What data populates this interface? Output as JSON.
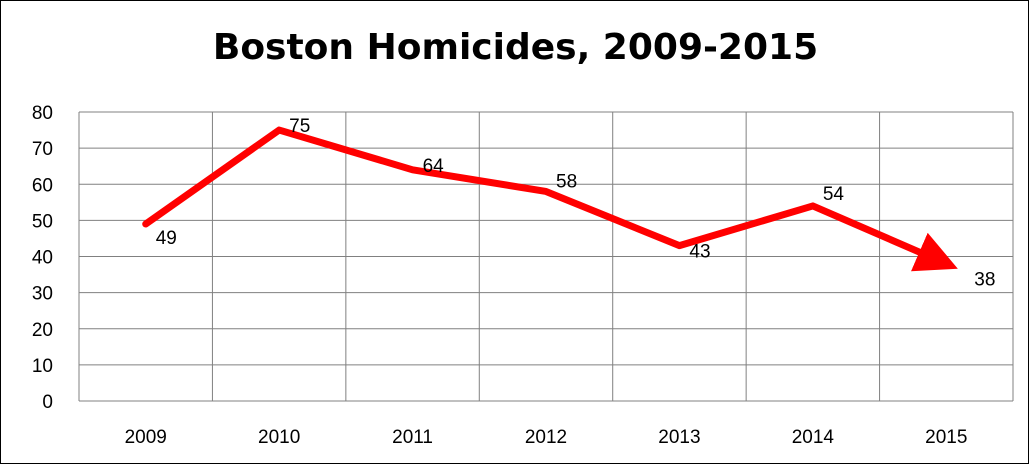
{
  "chart_data": {
    "type": "line",
    "title": "Boston Homicides, 2009-2015",
    "categories": [
      "2009",
      "2010",
      "2011",
      "2012",
      "2013",
      "2014",
      "2015"
    ],
    "series": [
      {
        "values": [
          49,
          75,
          64,
          58,
          43,
          54,
          38
        ]
      }
    ],
    "ylim": [
      0,
      80
    ],
    "yticks": [
      0,
      10,
      20,
      30,
      40,
      50,
      60,
      70,
      80
    ],
    "xlabel": "",
    "ylabel": "",
    "grid": true,
    "legend": "none",
    "line_color": "#ff0000",
    "grid_color": "#808080",
    "end_marker": "arrow",
    "data_labels": true
  }
}
